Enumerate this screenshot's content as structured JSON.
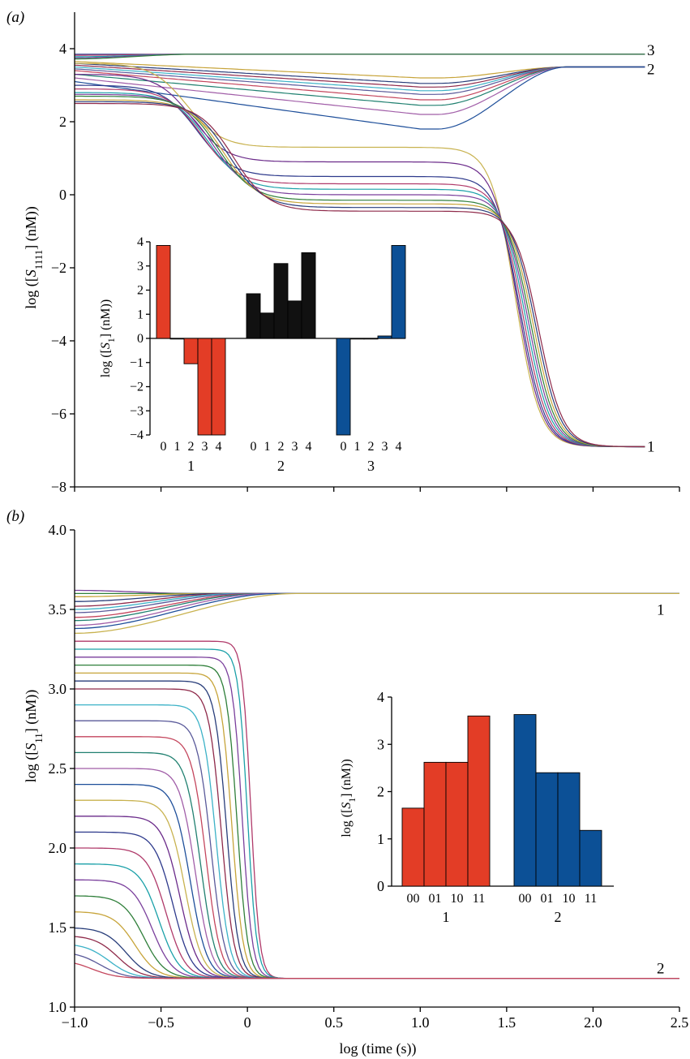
{
  "chart_data": [
    {
      "panel": "(a)",
      "type": "line",
      "ylabel": "log ([S1111] (nM))",
      "ylabel_parts": {
        "pre": "log ([",
        "var": "S",
        "sub": "1111",
        "post": "] (nM))"
      },
      "ylim": [
        -8,
        5
      ],
      "y_ticks": [
        "4",
        "2",
        "0",
        "−2",
        "−4",
        "−6",
        "−8"
      ],
      "y_tick_values": [
        4,
        2,
        0,
        -2,
        -4,
        -6,
        -8
      ],
      "xlim": [
        -1.0,
        2.5
      ],
      "x_tick_values": [
        -1.0,
        -0.5,
        0,
        0.5,
        1.0,
        1.5,
        2.0,
        2.5
      ],
      "end_labels": [
        {
          "text": "3",
          "color": "#2b3f9c",
          "y": 3.85
        },
        {
          "text": "2",
          "color": "#000000",
          "y": 3.5
        },
        {
          "text": "1",
          "color": "#d8301f",
          "y": -6.9
        }
      ],
      "series_families": [
        {
          "family": "3",
          "start_y": [
            3.85,
            3.82,
            3.78,
            3.75,
            3.72
          ],
          "end_y": 3.85
        },
        {
          "family": "2",
          "start_y": [
            3.65,
            3.6,
            3.55,
            3.5,
            3.45,
            3.4,
            3.3,
            3.2,
            3.1
          ],
          "dip_min_y": [
            3.2,
            3.05,
            2.95,
            2.85,
            2.75,
            2.6,
            2.45,
            2.2,
            1.8
          ],
          "end_y": 3.5
        },
        {
          "family": "1",
          "start_y": [
            3.6,
            3.3,
            3.0,
            2.9,
            2.8,
            2.75,
            2.7,
            2.6,
            2.55,
            2.5
          ],
          "plateau_y": [
            1.3,
            0.9,
            0.5,
            0.3,
            0.15,
            0.0,
            -0.15,
            -0.25,
            -0.35,
            -0.45
          ],
          "end_y": -6.9
        }
      ],
      "inset": {
        "type": "bar",
        "ylabel_parts": {
          "pre": "log ([",
          "var": "S",
          "sub": "1",
          "post": "] (nM))"
        },
        "ylim": [
          -4,
          4
        ],
        "y_ticks": [
          "4",
          "3",
          "2",
          "1",
          "0",
          "−1",
          "−2",
          "−3",
          "−4"
        ],
        "y_tick_values": [
          4,
          3,
          2,
          1,
          0,
          -1,
          -2,
          -3,
          -4
        ],
        "categories": [
          "0",
          "1",
          "2",
          "3",
          "4"
        ],
        "groups": [
          {
            "name": "1",
            "name_color": "#d8301f",
            "color": "#e33d26",
            "values": [
              3.85,
              0.0,
              -1.05,
              -4.0,
              -4.0
            ]
          },
          {
            "name": "2",
            "name_color": "#000000",
            "color": "#111111",
            "values": [
              1.85,
              1.05,
              3.1,
              1.55,
              3.55
            ]
          },
          {
            "name": "3",
            "name_color": "#2b3f9c",
            "color": "#0c5096",
            "values": [
              -4.0,
              0.0,
              0.0,
              0.1,
              3.85
            ]
          }
        ]
      }
    },
    {
      "panel": "(b)",
      "type": "line",
      "xlabel": "log (time (s))",
      "ylabel": "log ([S11] (nM))",
      "ylabel_parts": {
        "pre": "log ([",
        "var": "S",
        "sub": "11",
        "post": "] (nM))"
      },
      "xlim": [
        -1.0,
        2.5
      ],
      "ylim": [
        1.0,
        4.0
      ],
      "x_ticks": [
        "−1.0",
        "−0.5",
        "0",
        "0.5",
        "1.0",
        "1.5",
        "2.0",
        "2.5"
      ],
      "x_tick_values": [
        -1.0,
        -0.5,
        0,
        0.5,
        1.0,
        1.5,
        2.0,
        2.5
      ],
      "y_ticks": [
        "4.0",
        "3.5",
        "3.0",
        "2.5",
        "2.0",
        "1.5",
        "1.0"
      ],
      "y_tick_values": [
        4.0,
        3.5,
        3.0,
        2.5,
        2.0,
        1.5,
        1.0
      ],
      "end_labels": [
        {
          "text": "1",
          "color": "#d8301f",
          "y": 3.6
        },
        {
          "text": "2",
          "color": "#2b3f9c",
          "y": 1.18
        }
      ],
      "series_families": [
        {
          "family": "1",
          "end_y": 3.6,
          "start_y": [
            3.62,
            3.6,
            3.58,
            3.55,
            3.52,
            3.5,
            3.48,
            3.45,
            3.43,
            3.4,
            3.38,
            3.35
          ],
          "settle_x": [
            -0.3,
            -0.25,
            -0.2,
            -0.15,
            -0.1,
            -0.05,
            0.0,
            0.05,
            0.08,
            0.12,
            0.18,
            0.28
          ]
        },
        {
          "family": "2",
          "end_y": 1.18,
          "start_y": [
            3.3,
            3.25,
            3.2,
            3.15,
            3.1,
            3.05,
            3.0,
            2.9,
            2.8,
            2.7,
            2.6,
            2.5,
            2.4,
            2.3,
            2.2,
            2.1,
            2.0,
            1.9,
            1.8,
            1.7,
            1.6,
            1.5,
            1.45,
            1.4,
            1.35,
            1.3
          ],
          "drop_x": [
            0.02,
            0.0,
            -0.03,
            -0.06,
            -0.09,
            -0.12,
            -0.15,
            -0.18,
            -0.21,
            -0.24,
            -0.27,
            -0.3,
            -0.33,
            -0.36,
            -0.39,
            -0.43,
            -0.47,
            -0.51,
            -0.55,
            -0.6,
            -0.65,
            -0.7,
            -0.75,
            -0.8,
            -0.85,
            -0.9
          ]
        }
      ],
      "inset": {
        "type": "bar",
        "ylabel_parts": {
          "pre": "log ([",
          "var": "S",
          "sub": "1",
          "post": "] (nM))"
        },
        "ylim": [
          0,
          4
        ],
        "y_ticks": [
          "4",
          "3",
          "2",
          "1",
          "0"
        ],
        "y_tick_values": [
          4,
          3,
          2,
          1,
          0
        ],
        "categories": [
          "00",
          "01",
          "10",
          "11"
        ],
        "groups": [
          {
            "name": "1",
            "name_color": "#d8301f",
            "color": "#e33d26",
            "values": [
              1.65,
              2.62,
              2.62,
              3.6
            ]
          },
          {
            "name": "2",
            "name_color": "#2b3f9c",
            "color": "#0c5096",
            "values": [
              3.63,
              2.4,
              2.4,
              1.18
            ]
          }
        ]
      }
    }
  ]
}
